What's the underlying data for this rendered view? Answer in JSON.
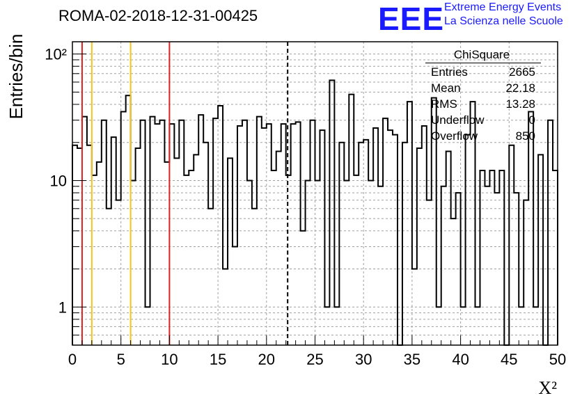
{
  "header": {
    "run_id": "ROMA-02-2018-12-31-00425",
    "logo_mark": "EEE",
    "logo_line1": "Extreme Energy Events",
    "logo_line2": "La Scienza nelle Scuole"
  },
  "stats": {
    "title": "ChiSquare",
    "rows": [
      {
        "label": "Entries",
        "value": "2665"
      },
      {
        "label": "Mean",
        "value": "22.18"
      },
      {
        "label": "RMS",
        "value": "13.28"
      },
      {
        "label": "Underflow",
        "value": "0"
      },
      {
        "label": "Overflow",
        "value": "850"
      }
    ]
  },
  "chart_data": {
    "type": "histogram",
    "title": "",
    "xlabel": "X²",
    "ylabel": "Entries/bin",
    "xlim": [
      0,
      50
    ],
    "ylim": [
      0.5,
      125
    ],
    "yscale": "log",
    "grid": true,
    "bin_width": 0.5,
    "x_ticks": [
      0,
      5,
      10,
      15,
      20,
      25,
      30,
      35,
      40,
      45,
      50
    ],
    "y_ticks": [
      {
        "value": 1,
        "label": "1"
      },
      {
        "value": 10,
        "label": "10"
      },
      {
        "value": 100,
        "label": "10²"
      }
    ],
    "bin_counts": [
      19,
      18,
      32,
      19,
      11,
      14,
      30,
      6,
      22,
      7,
      35,
      47,
      10,
      18,
      30,
      1,
      32,
      28,
      30,
      14,
      28,
      15,
      30,
      11,
      12,
      16,
      33,
      20,
      6,
      31,
      39,
      2,
      15,
      3,
      27,
      30,
      10,
      6,
      32,
      26,
      28,
      12,
      17,
      28,
      11,
      28,
      29,
      4,
      10,
      30,
      10,
      25,
      1,
      62,
      1,
      20,
      10,
      48,
      11,
      20,
      21,
      10,
      26,
      9,
      31,
      25,
      23,
      0,
      20,
      42,
      2,
      18,
      27,
      7,
      45,
      1,
      9,
      17,
      5,
      8,
      1,
      23,
      42,
      1,
      12,
      9,
      12,
      8,
      12,
      0,
      19,
      8,
      1,
      7,
      35,
      1,
      16,
      0,
      30,
      12
    ],
    "vertical_lines": [
      {
        "x": 1,
        "color": "#e02020",
        "style": "solid"
      },
      {
        "x": 2,
        "color": "#f5c518",
        "style": "solid"
      },
      {
        "x": 6,
        "color": "#f5c518",
        "style": "solid"
      },
      {
        "x": 10,
        "color": "#e02020",
        "style": "solid"
      },
      {
        "x": 22.18,
        "color": "#000000",
        "style": "dashed"
      }
    ]
  }
}
